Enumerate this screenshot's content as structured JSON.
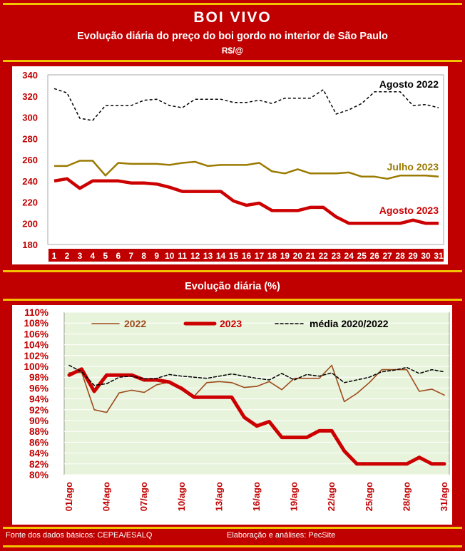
{
  "header": {
    "title": "BOI VIVO",
    "subtitle": "Evolução diária do preço do boi gordo no interior de São Paulo",
    "unit": "R$/@"
  },
  "chart2_title": "Evolução diária (%)",
  "footer": {
    "source": "Fonte dos dados básicos: CEPEA/ESALQ",
    "author": "Elaboração e análises: PecSite"
  },
  "colors": {
    "background": "#c00000",
    "accent": "#f3c200",
    "agosto2022": "#000000",
    "julho2023": "#9a7a00",
    "agosto2023": "#cc0000",
    "s2022": "#9c4a1a",
    "s2023": "#cc0000",
    "media": "#000000",
    "plot_bg": "#e8f3dc"
  },
  "chart_data": [
    {
      "type": "line",
      "ylim": [
        180,
        340
      ],
      "yticks": [
        "180",
        "200",
        "220",
        "240",
        "260",
        "280",
        "300",
        "320",
        "340"
      ],
      "categories": [
        "1",
        "2",
        "3",
        "4",
        "5",
        "6",
        "7",
        "8",
        "9",
        "10",
        "11",
        "12",
        "13",
        "14",
        "15",
        "16",
        "17",
        "18",
        "19",
        "20",
        "21",
        "22",
        "23",
        "24",
        "25",
        "26",
        "27",
        "28",
        "29",
        "30",
        "31"
      ],
      "series": [
        {
          "name": "Agosto 2022",
          "style": "dashed",
          "values": [
            327,
            323,
            299,
            297,
            311,
            311,
            311,
            316,
            317,
            311,
            309,
            317,
            317,
            317,
            314,
            314,
            316,
            313,
            318,
            318,
            318,
            326,
            303,
            307,
            313,
            324,
            324,
            324,
            311,
            312,
            309
          ]
        },
        {
          "name": "Julho 2023",
          "style": "solid",
          "values": [
            254,
            254,
            259,
            259,
            245,
            257,
            256,
            256,
            256,
            255,
            257,
            258,
            254,
            255,
            255,
            255,
            257,
            249,
            247,
            251,
            247,
            247,
            247,
            248,
            244,
            244,
            242,
            245,
            245,
            245,
            244
          ]
        },
        {
          "name": "Agosto 2023",
          "style": "bold",
          "values": [
            240,
            242,
            233,
            240,
            240,
            240,
            238,
            238,
            237,
            234,
            230,
            230,
            230,
            230,
            221,
            217,
            219,
            212,
            212,
            212,
            215,
            215,
            206,
            200,
            200,
            200,
            200,
            200,
            203,
            200,
            200
          ]
        }
      ]
    },
    {
      "type": "line",
      "ylim": [
        80,
        110
      ],
      "yticks": [
        "80%",
        "82%",
        "84%",
        "86%",
        "88%",
        "90%",
        "92%",
        "94%",
        "96%",
        "98%",
        "100%",
        "102%",
        "104%",
        "106%",
        "108%",
        "110%"
      ],
      "xticks": [
        "01/ago",
        "04/ago",
        "07/ago",
        "10/ago",
        "13/ago",
        "16/ago",
        "19/ago",
        "22/ago",
        "25/ago",
        "28/ago",
        "31/ago"
      ],
      "series": [
        {
          "name": "2022",
          "style": "solid",
          "values": [
            98.8,
            98.9,
            92.0,
            91.5,
            95.1,
            95.6,
            95.2,
            96.6,
            97.1,
            96.2,
            94.5,
            97.0,
            97.2,
            97.0,
            96.1,
            96.3,
            97.2,
            95.7,
            97.8,
            97.8,
            97.8,
            100.2,
            93.5,
            95.0,
            97.0,
            99.4,
            99.4,
            99.4,
            95.4,
            95.8,
            94.7
          ]
        },
        {
          "name": "2023",
          "style": "bold",
          "values": [
            98.4,
            99.5,
            95.4,
            98.4,
            98.4,
            98.4,
            97.5,
            97.5,
            97.1,
            95.9,
            94.3,
            94.3,
            94.3,
            94.3,
            90.6,
            89.0,
            89.8,
            86.9,
            86.9,
            86.9,
            88.1,
            88.1,
            84.4,
            82.0,
            82.0,
            82.0,
            82.0,
            82.0,
            83.2,
            82.0,
            82.0
          ]
        },
        {
          "name": "média 2020/2022",
          "style": "dashed",
          "values": [
            100.2,
            99.0,
            96.5,
            96.8,
            98.0,
            98.2,
            97.7,
            97.8,
            98.5,
            98.2,
            98.0,
            97.8,
            98.2,
            98.6,
            98.2,
            97.8,
            97.5,
            98.7,
            97.5,
            98.5,
            98.2,
            98.8,
            97.0,
            97.5,
            98.0,
            99.0,
            99.3,
            99.8,
            98.7,
            99.4,
            99.0
          ]
        }
      ]
    }
  ]
}
